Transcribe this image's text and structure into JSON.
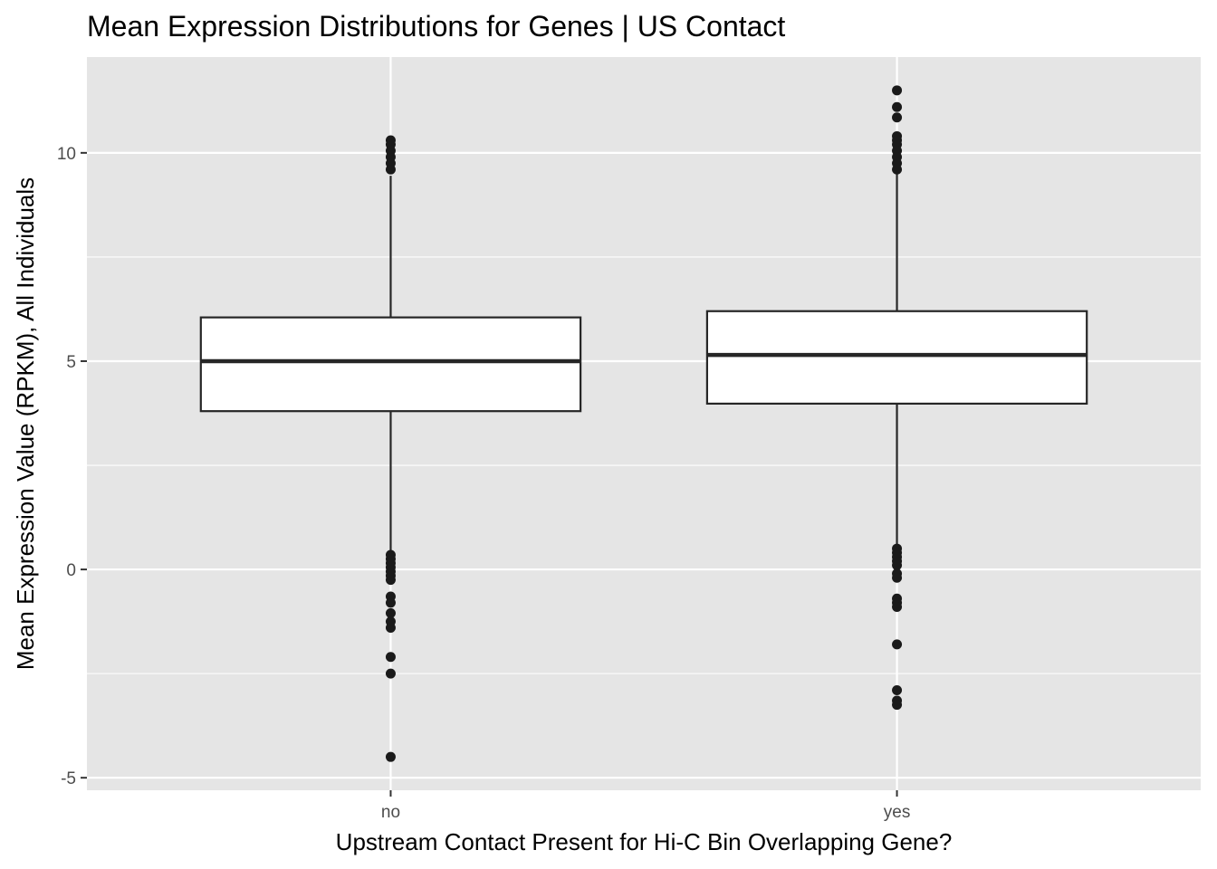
{
  "chart_data": {
    "type": "box",
    "title": "Mean Expression Distributions for Genes | US Contact",
    "xlabel": "Upstream Contact Present for Hi-C Bin Overlapping Gene?",
    "ylabel": "Mean Expression Value (RPKM), All Individuals",
    "categories": [
      "no",
      "yes"
    ],
    "ylim": [
      -5.3,
      12.3
    ],
    "yticks": [
      -5,
      0,
      5,
      10
    ],
    "ytick_labels": [
      "-5",
      "0",
      "5",
      "10"
    ],
    "grid": true,
    "boxes": [
      {
        "category": "no",
        "whisker_low": 0.4,
        "q1": 3.8,
        "median": 5.0,
        "q3": 6.05,
        "whisker_high": 9.45,
        "outliers": [
          10.3,
          10.2,
          10.05,
          9.9,
          9.75,
          9.6,
          0.35,
          0.25,
          0.15,
          0.05,
          -0.05,
          -0.15,
          -0.25,
          -0.65,
          -0.8,
          -1.05,
          -1.25,
          -1.4,
          -2.1,
          -2.5,
          -4.5
        ]
      },
      {
        "category": "yes",
        "whisker_low": 0.6,
        "q1": 3.98,
        "median": 5.15,
        "q3": 6.2,
        "whisker_high": 9.6,
        "outliers": [
          11.5,
          11.1,
          10.85,
          10.4,
          10.3,
          10.2,
          10.05,
          9.9,
          9.75,
          9.6,
          0.5,
          0.4,
          0.3,
          0.2,
          0.1,
          -0.1,
          -0.2,
          -0.7,
          -0.8,
          -0.9,
          -1.8,
          -2.9,
          -3.15,
          -3.25
        ]
      }
    ],
    "colors": {
      "panel_background": "#e5e5e5",
      "grid": "#ffffff",
      "box_fill": "#ffffff",
      "box_stroke": "#262626",
      "point": "#1a1a1a"
    }
  }
}
